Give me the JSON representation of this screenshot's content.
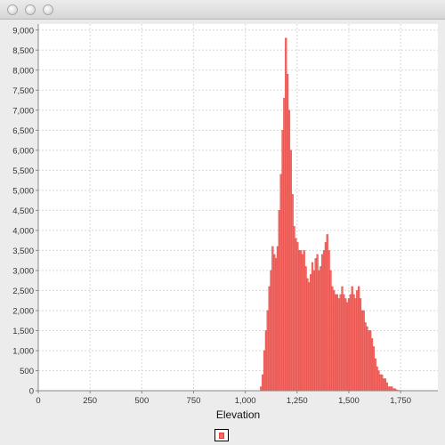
{
  "window": {
    "buttons": [
      "close-button",
      "minimize-button",
      "zoom-button"
    ]
  },
  "chart_data": {
    "type": "bar",
    "title": "",
    "xlabel": "Elevation",
    "ylabel": "",
    "xlim": [
      0,
      1930
    ],
    "ylim": [
      0,
      9150
    ],
    "x_ticks": [
      "0",
      "250",
      "500",
      "750",
      "1,000",
      "1,250",
      "1,500",
      "1,750"
    ],
    "y_ticks": [
      "0",
      "500",
      "1,000",
      "1,500",
      "2,000",
      "2,500",
      "3,000",
      "3,500",
      "4,000",
      "4,500",
      "5,000",
      "5,500",
      "6,000",
      "6,500",
      "7,000",
      "7,500",
      "8,000",
      "8,500",
      "9,000"
    ],
    "grid": true,
    "bar_color": "#f26b66",
    "bar_edge_color": "#e0423c",
    "bin_width": 8,
    "series": [
      {
        "name": "",
        "x": [
          1072,
          1080,
          1088,
          1096,
          1104,
          1112,
          1120,
          1128,
          1136,
          1144,
          1152,
          1160,
          1168,
          1176,
          1184,
          1192,
          1200,
          1208,
          1216,
          1224,
          1232,
          1240,
          1248,
          1256,
          1264,
          1272,
          1280,
          1288,
          1296,
          1304,
          1312,
          1320,
          1328,
          1336,
          1344,
          1352,
          1360,
          1368,
          1376,
          1384,
          1392,
          1400,
          1408,
          1416,
          1424,
          1432,
          1440,
          1448,
          1456,
          1464,
          1472,
          1480,
          1488,
          1496,
          1504,
          1512,
          1520,
          1528,
          1536,
          1544,
          1552,
          1560,
          1568,
          1576,
          1584,
          1592,
          1600,
          1608,
          1616,
          1624,
          1632,
          1640,
          1648,
          1656,
          1664,
          1672,
          1680,
          1688,
          1696,
          1704,
          1712,
          1720,
          1728,
          1736,
          1744,
          1752,
          1760,
          1768,
          1776,
          1784,
          1792,
          1800,
          1808,
          1816,
          1824,
          1832,
          1840
        ],
        "values": [
          100,
          400,
          1000,
          1500,
          2000,
          2600,
          3000,
          3600,
          3400,
          3300,
          3600,
          4500,
          5400,
          6500,
          7300,
          8800,
          7900,
          7000,
          6000,
          4900,
          4100,
          3800,
          3700,
          3500,
          3500,
          3400,
          3500,
          3100,
          2800,
          2700,
          2900,
          3200,
          3000,
          3300,
          3400,
          3000,
          3100,
          3400,
          3500,
          3700,
          3900,
          3500,
          3000,
          2600,
          2500,
          2400,
          2400,
          2300,
          2400,
          2600,
          2400,
          2300,
          2200,
          2300,
          2400,
          2600,
          2400,
          2300,
          2500,
          2600,
          2300,
          2000,
          2000,
          1700,
          1600,
          1500,
          1500,
          1300,
          1100,
          800,
          600,
          500,
          400,
          400,
          300,
          300,
          200,
          100,
          100,
          100,
          50,
          50,
          20,
          10,
          10,
          5,
          5,
          5,
          0,
          0,
          0,
          0,
          0,
          0,
          0,
          0,
          0
        ]
      }
    ]
  }
}
